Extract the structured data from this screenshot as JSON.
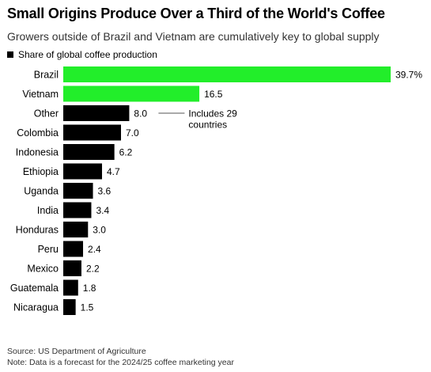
{
  "header": {
    "title": "Small Origins Produce Over a Third of the World's Coffee",
    "subtitle": "Growers outside of Brazil and Vietnam are cumulatively key to global supply"
  },
  "colors": {
    "highlight": "#22ee2a",
    "default": "#000000",
    "annotation_line": "#555555"
  },
  "chart_data": {
    "type": "bar",
    "orientation": "horizontal",
    "categories": [
      "Brazil",
      "Vietnam",
      "Other",
      "Colombia",
      "Indonesia",
      "Ethiopia",
      "Uganda",
      "India",
      "Honduras",
      "Peru",
      "Mexico",
      "Guatemala",
      "Nicaragua"
    ],
    "series": [
      {
        "name": "Share of global coffee production",
        "values": [
          39.7,
          16.5,
          8.0,
          7.0,
          6.2,
          4.7,
          3.6,
          3.4,
          3.0,
          2.4,
          2.2,
          1.8,
          1.5
        ],
        "labels": [
          "39.7%",
          "16.5",
          "8.0",
          "7.0",
          "6.2",
          "4.7",
          "3.6",
          "3.4",
          "3.0",
          "2.4",
          "2.2",
          "1.8",
          "1.5"
        ]
      }
    ],
    "highlighted": [
      "Brazil",
      "Vietnam"
    ],
    "annotation": {
      "category": "Other",
      "text_lines": [
        "Includes 29",
        "countries"
      ]
    },
    "xlim": [
      0,
      39.7
    ],
    "grid": false,
    "legend": "top-left"
  },
  "footer": {
    "source": "Source: US Department of Agriculture",
    "note": "Note: Data is a forecast for the 2024/25 coffee marketing year"
  }
}
